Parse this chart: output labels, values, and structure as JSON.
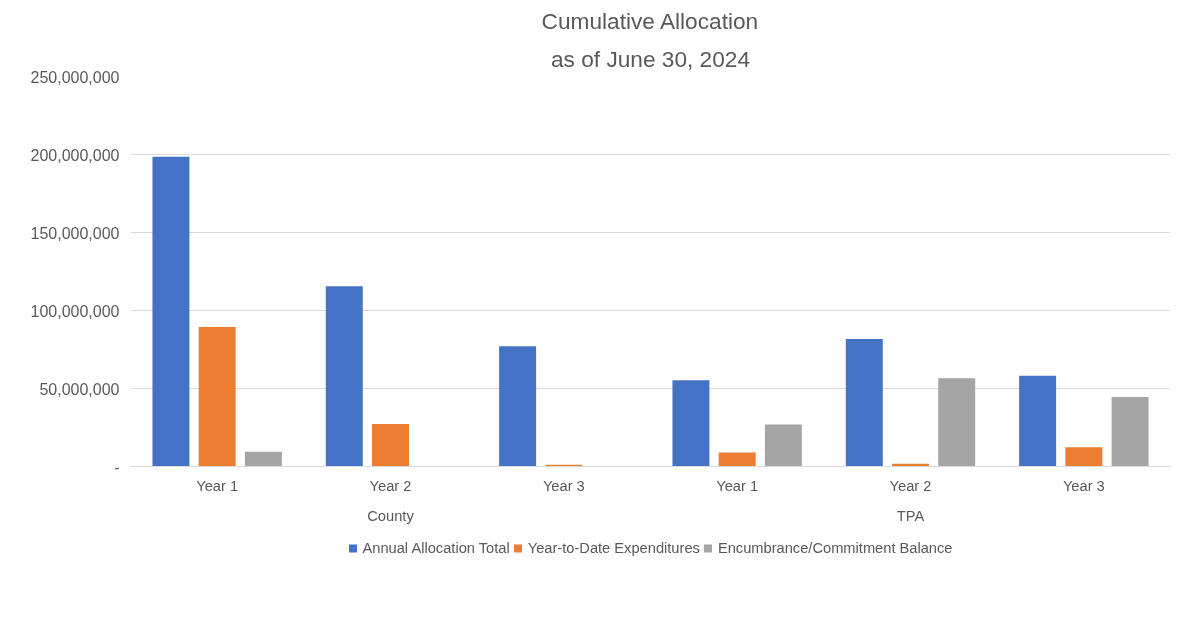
{
  "chart_data": {
    "type": "bar",
    "title": "Cumulative Allocation",
    "subtitle": "as of June 30, 2024",
    "categories": [
      "Year 1",
      "Year 2",
      "Year 3",
      "Year 1",
      "Year 2",
      "Year 3"
    ],
    "annotations": [
      "County",
      "TPA"
    ],
    "series": [
      {
        "name": "Annual Allocation Total",
        "color": "#4472c4",
        "values": [
          198500000,
          115500000,
          77100000,
          55300000,
          81800000,
          58100000
        ]
      },
      {
        "name": "Year-to-Date Expenditures",
        "color": "#ed7d31",
        "values": [
          89400000,
          27300000,
          1200000,
          9000000,
          1700000,
          12300000
        ]
      },
      {
        "name": "Encumbrance/Commitment Balance",
        "color": "#a5a5a5",
        "values": [
          9500000,
          0,
          0,
          27000000,
          56500000,
          44600000
        ]
      }
    ],
    "ylim": [
      0,
      250000000
    ],
    "yticks": [
      {
        "value": 0,
        "label": "-"
      },
      {
        "value": 50000000,
        "label": "50,000,000"
      },
      {
        "value": 100000000,
        "label": "100,000,000"
      },
      {
        "value": 150000000,
        "label": "150,000,000"
      },
      {
        "value": 200000000,
        "label": "200,000,000"
      },
      {
        "value": 250000000,
        "label": "250,000,000"
      }
    ],
    "grid": "y",
    "legend": "bottom"
  }
}
